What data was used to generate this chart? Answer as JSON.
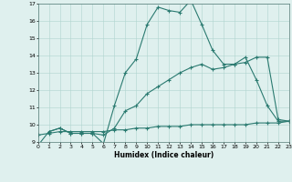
{
  "line1_x": [
    0,
    1,
    2,
    3,
    4,
    5,
    6,
    7,
    8,
    9,
    10,
    11,
    12,
    13,
    14,
    15,
    16,
    17,
    18,
    19,
    20,
    21,
    22,
    23
  ],
  "line1_y": [
    8.8,
    9.6,
    9.8,
    9.5,
    9.5,
    9.5,
    8.9,
    11.1,
    13.0,
    13.8,
    15.8,
    16.8,
    16.6,
    16.5,
    17.2,
    15.8,
    14.3,
    13.5,
    13.5,
    13.9,
    12.6,
    11.1,
    10.2,
    10.2
  ],
  "line2_x": [
    1,
    2,
    3,
    4,
    5,
    6,
    7,
    8,
    9,
    10,
    11,
    12,
    13,
    14,
    15,
    16,
    17,
    18,
    19,
    20,
    21,
    22,
    23
  ],
  "line2_y": [
    9.6,
    9.8,
    9.5,
    9.5,
    9.5,
    9.4,
    9.8,
    10.8,
    11.1,
    11.8,
    12.2,
    12.6,
    13.0,
    13.3,
    13.5,
    13.2,
    13.3,
    13.5,
    13.6,
    13.9,
    13.9,
    10.3,
    10.2
  ],
  "line3_x": [
    0,
    1,
    2,
    3,
    4,
    5,
    6,
    7,
    8,
    9,
    10,
    11,
    12,
    13,
    14,
    15,
    16,
    17,
    18,
    19,
    20,
    21,
    22,
    23
  ],
  "line3_y": [
    9.4,
    9.5,
    9.6,
    9.6,
    9.6,
    9.6,
    9.6,
    9.7,
    9.7,
    9.8,
    9.8,
    9.9,
    9.9,
    9.9,
    10.0,
    10.0,
    10.0,
    10.0,
    10.0,
    10.0,
    10.1,
    10.1,
    10.1,
    10.2
  ],
  "color": "#2a7a70",
  "bg_color": "#dff0ee",
  "grid_color": "#b0d4ce",
  "xlabel": "Humidex (Indice chaleur)",
  "ylim": [
    9,
    17
  ],
  "xlim": [
    0,
    23
  ],
  "yticks": [
    9,
    10,
    11,
    12,
    13,
    14,
    15,
    16,
    17
  ],
  "xticks": [
    0,
    1,
    2,
    3,
    4,
    5,
    6,
    7,
    8,
    9,
    10,
    11,
    12,
    13,
    14,
    15,
    16,
    17,
    18,
    19,
    20,
    21,
    22,
    23
  ],
  "marker": "+"
}
